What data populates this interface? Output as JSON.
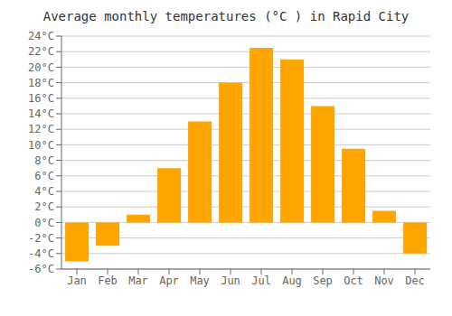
{
  "chart_data": {
    "type": "bar",
    "title": "Average monthly temperatures (°C ) in Rapid City",
    "categories": [
      "Jan",
      "Feb",
      "Mar",
      "Apr",
      "May",
      "Jun",
      "Jul",
      "Aug",
      "Sep",
      "Oct",
      "Nov",
      "Dec"
    ],
    "values": [
      -5.0,
      -3.0,
      1.0,
      7.0,
      13.0,
      18.0,
      22.5,
      21.0,
      15.0,
      9.5,
      1.5,
      -4.0
    ],
    "color": "#FFA500",
    "ylim": [
      -6,
      24
    ],
    "yticks": [
      {
        "value": -6,
        "label": "-6°C"
      },
      {
        "value": -4,
        "label": "-4°C"
      },
      {
        "value": -2,
        "label": "-2°C"
      },
      {
        "value": 0,
        "label": "0°C"
      },
      {
        "value": 2,
        "label": "2°C"
      },
      {
        "value": 4,
        "label": "4°C"
      },
      {
        "value": 6,
        "label": "6°C"
      },
      {
        "value": 8,
        "label": "8°C"
      },
      {
        "value": 10,
        "label": "10°C"
      },
      {
        "value": 12,
        "label": "12°C"
      },
      {
        "value": 14,
        "label": "14°C"
      },
      {
        "value": 16,
        "label": "16°C"
      },
      {
        "value": 18,
        "label": "18°C"
      },
      {
        "value": 20,
        "label": "20°C"
      },
      {
        "value": 22,
        "label": "22°C"
      },
      {
        "value": 24,
        "label": "24°C"
      }
    ],
    "grid": true
  }
}
